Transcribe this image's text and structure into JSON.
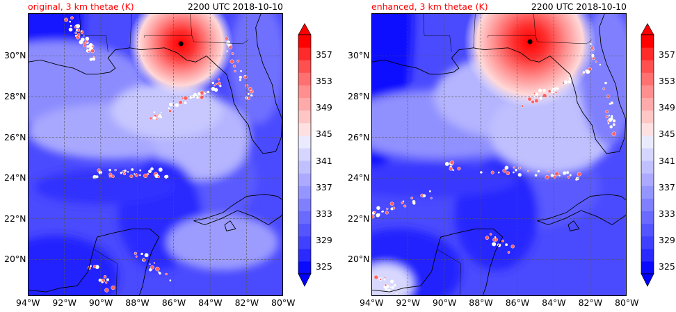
{
  "panels": [
    {
      "title": "original, 3 km thetae (K)",
      "time": "2200 UTC 2018-10-10",
      "storm_center": {
        "lon": -85.6,
        "lat": 30.6
      }
    },
    {
      "title": "enhanced, 3 km thetae (K)",
      "time": "2200 UTC 2018-10-10",
      "storm_center": {
        "lon": -85.3,
        "lat": 30.7
      }
    }
  ],
  "axes": {
    "lat_labels": [
      "20°N",
      "22°N",
      "24°N",
      "26°N",
      "28°N",
      "30°N"
    ],
    "lat_values": [
      20,
      22,
      24,
      26,
      28,
      30
    ],
    "lon_labels": [
      "94°W",
      "92°W",
      "90°W",
      "88°W",
      "86°W",
      "84°W",
      "82°W",
      "80°W"
    ],
    "lon_values": [
      -94,
      -92,
      -90,
      -88,
      -86,
      -84,
      -82,
      -80
    ],
    "lon_range": [
      -94,
      -80
    ],
    "lat_range": [
      18.2,
      32.1
    ]
  },
  "colorbar": {
    "labels": [
      "325",
      "329",
      "333",
      "337",
      "341",
      "345",
      "349",
      "353",
      "357"
    ],
    "levels": [
      325,
      327,
      329,
      331,
      333,
      335,
      337,
      339,
      341,
      343,
      345,
      347,
      349,
      351,
      353,
      355,
      357,
      359
    ],
    "colors": [
      "#0a0aff",
      "#2a2aff",
      "#4040ff",
      "#5555ff",
      "#6a6aff",
      "#8080ff",
      "#9595ff",
      "#abaaff",
      "#c0c0ff",
      "#d5d5ff",
      "#eaeaff",
      "#ffe0e0",
      "#ffc6c6",
      "#ffaaaa",
      "#ff8f8f",
      "#ff7070",
      "#ff5050",
      "#ff2a2a",
      "#ff0000"
    ],
    "under_color": "#0000ff",
    "over_color": "#ff0000"
  }
}
